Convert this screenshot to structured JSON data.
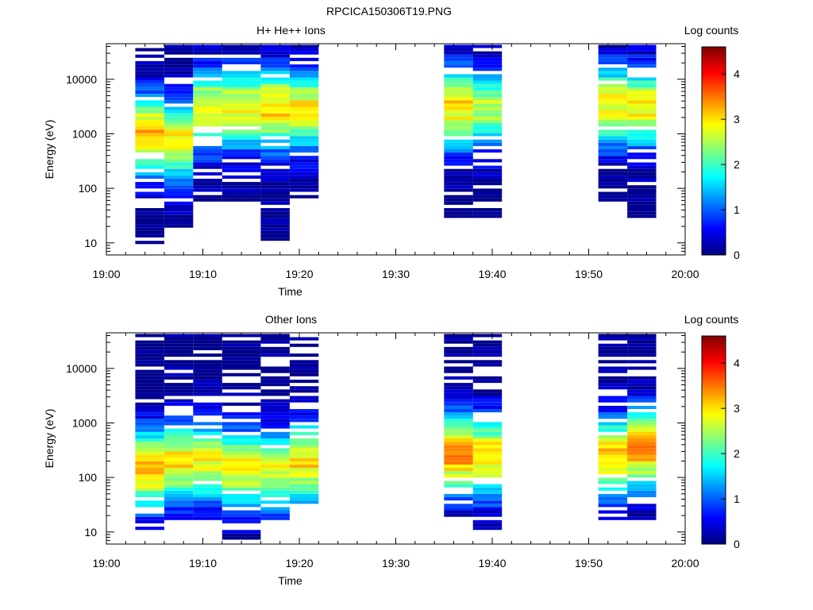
{
  "figure_title": "RPCICA150306T19.PNG",
  "chart_data": [
    {
      "type": "heatmap",
      "title": "H+ He++ Ions",
      "xlabel": "Time",
      "ylabel": "Energy (eV)",
      "x_ticks": [
        "19:00",
        "19:10",
        "19:20",
        "19:30",
        "19:40",
        "19:50",
        "20:00"
      ],
      "xlim": [
        "19:00",
        "20:00"
      ],
      "y_scale": "log",
      "y_ticks": [
        "10",
        "100",
        "1000",
        "10000"
      ],
      "ylim": [
        6,
        45000
      ],
      "colorbar": {
        "label": "Log counts",
        "range": [
          0,
          4.6
        ],
        "ticks": [
          "0",
          "1",
          "2",
          "3",
          "4"
        ]
      },
      "grid": false,
      "columns": [
        {
          "start": "19:03",
          "end": "19:06",
          "peak_energy_ev": 1000,
          "peak_log_counts": 3.3,
          "min_energy_ev": 9
        },
        {
          "start": "19:06",
          "end": "19:09",
          "peak_energy_ev": 800,
          "peak_log_counts": 3.0,
          "min_energy_ev": 18
        },
        {
          "start": "19:09",
          "end": "19:12",
          "peak_energy_ev": 3000,
          "peak_log_counts": 2.9,
          "min_energy_ev": 55
        },
        {
          "start": "19:12",
          "end": "19:16",
          "peak_energy_ev": 3000,
          "peak_log_counts": 2.9,
          "min_energy_ev": 60
        },
        {
          "start": "19:16",
          "end": "19:19",
          "peak_energy_ev": 3000,
          "peak_log_counts": 3.1,
          "min_energy_ev": 11
        },
        {
          "start": "19:19",
          "end": "19:22",
          "peak_energy_ev": 3000,
          "peak_log_counts": 2.9,
          "min_energy_ev": 55
        },
        {
          "start": "19:35",
          "end": "19:38",
          "peak_energy_ev": 3200,
          "peak_log_counts": 3.0,
          "min_energy_ev": 28
        },
        {
          "start": "19:38",
          "end": "19:41",
          "peak_energy_ev": 3000,
          "peak_log_counts": 2.6,
          "min_energy_ev": 28
        },
        {
          "start": "19:51",
          "end": "19:54",
          "peak_energy_ev": 3500,
          "peak_log_counts": 2.9,
          "min_energy_ev": 40
        },
        {
          "start": "19:54",
          "end": "19:57",
          "peak_energy_ev": 3200,
          "peak_log_counts": 2.9,
          "min_energy_ev": 28
        }
      ]
    },
    {
      "type": "heatmap",
      "title": "Other Ions",
      "xlabel": "Time",
      "ylabel": "Energy (eV)",
      "x_ticks": [
        "19:00",
        "19:10",
        "19:20",
        "19:30",
        "19:40",
        "19:50",
        "20:00"
      ],
      "xlim": [
        "19:00",
        "20:00"
      ],
      "y_scale": "log",
      "y_ticks": [
        "10",
        "100",
        "1000",
        "10000"
      ],
      "ylim": [
        6,
        45000
      ],
      "colorbar": {
        "label": "Log counts",
        "range": [
          0,
          4.6
        ],
        "ticks": [
          "0",
          "1",
          "2",
          "3",
          "4"
        ]
      },
      "grid": false,
      "columns": [
        {
          "start": "19:03",
          "end": "19:06",
          "peak_energy_ev": 150,
          "peak_log_counts": 3.2,
          "min_energy_ev": 11
        },
        {
          "start": "19:06",
          "end": "19:09",
          "peak_energy_ev": 200,
          "peak_log_counts": 3.0,
          "min_energy_ev": 17
        },
        {
          "start": "19:09",
          "end": "19:12",
          "peak_energy_ev": 200,
          "peak_log_counts": 2.8,
          "min_energy_ev": 17
        },
        {
          "start": "19:12",
          "end": "19:16",
          "peak_energy_ev": 150,
          "peak_log_counts": 2.9,
          "min_energy_ev": 6
        },
        {
          "start": "19:16",
          "end": "19:19",
          "peak_energy_ev": 150,
          "peak_log_counts": 2.8,
          "min_energy_ev": 17
        },
        {
          "start": "19:19",
          "end": "19:22",
          "peak_energy_ev": 200,
          "peak_log_counts": 3.0,
          "min_energy_ev": 33
        },
        {
          "start": "19:35",
          "end": "19:38",
          "peak_energy_ev": 280,
          "peak_log_counts": 3.4,
          "min_energy_ev": 17
        },
        {
          "start": "19:38",
          "end": "19:41",
          "peak_energy_ev": 250,
          "peak_log_counts": 3.1,
          "min_energy_ev": 11
        },
        {
          "start": "19:51",
          "end": "19:54",
          "peak_energy_ev": 250,
          "peak_log_counts": 3.1,
          "min_energy_ev": 17
        },
        {
          "start": "19:54",
          "end": "19:57",
          "peak_energy_ev": 350,
          "peak_log_counts": 3.4,
          "min_energy_ev": 17
        }
      ]
    }
  ]
}
